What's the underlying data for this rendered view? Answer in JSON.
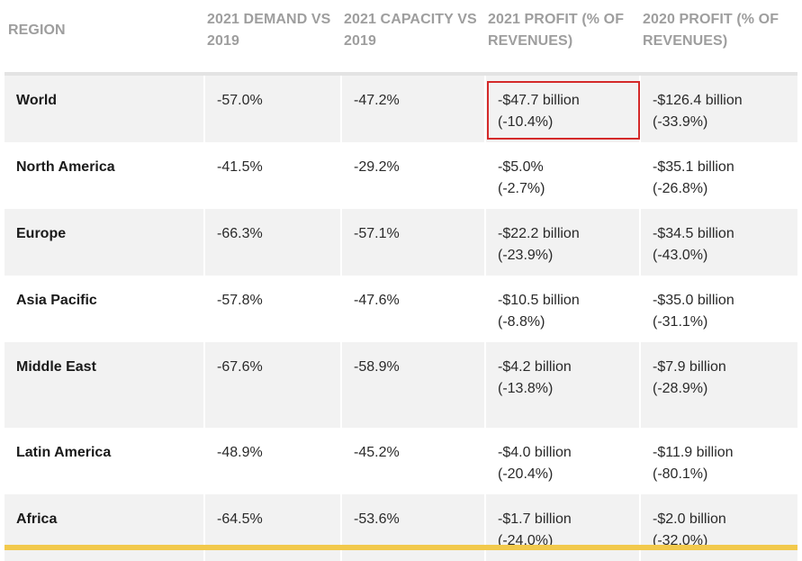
{
  "headers": {
    "region": "REGION",
    "demand": "2021 DEMAND VS 2019",
    "capacity": "2021 CAPACITY VS 2019",
    "profit2021": "2021 PROFIT (% OF REVENUES)",
    "profit2020": "2020 PROFIT (% OF REVENUES)"
  },
  "rows": [
    {
      "region": "World",
      "demand": "-57.0%",
      "capacity": "-47.2%",
      "profit2021_a": "-$47.7 billion",
      "profit2021_b": "(-10.4%)",
      "profit2020_a": "-$126.4 billion",
      "profit2020_b": "(-33.9%)"
    },
    {
      "region": "North America",
      "demand": "-41.5%",
      "capacity": "-29.2%",
      "profit2021_a": "-$5.0%",
      "profit2021_b": "(-2.7%)",
      "profit2020_a": "-$35.1 billion",
      "profit2020_b": "(-26.8%)"
    },
    {
      "region": "Europe",
      "demand": "-66.3%",
      "capacity": "-57.1%",
      "profit2021_a": "-$22.2 billion",
      "profit2021_b": "(-23.9%)",
      "profit2020_a": "-$34.5 billion",
      "profit2020_b": "(-43.0%)"
    },
    {
      "region": "Asia Pacific",
      "demand": "-57.8%",
      "capacity": "-47.6%",
      "profit2021_a": "-$10.5 billion",
      "profit2021_b": "(-8.8%)",
      "profit2020_a": "-$35.0 billion",
      "profit2020_b": "(-31.1%)"
    },
    {
      "region": "Middle East",
      "demand": "-67.6%",
      "capacity": "-58.9%",
      "profit2021_a": "-$4.2 billion",
      "profit2021_b": "(-13.8%)",
      "profit2020_a": "-$7.9 billion",
      "profit2020_b": "(-28.9%)"
    },
    {
      "region": "Latin America",
      "demand": "-48.9%",
      "capacity": "-45.2%",
      "profit2021_a": "-$4.0 billion",
      "profit2021_b": "(-20.4%)",
      "profit2020_a": "-$11.9 billion",
      "profit2020_b": "(-80.1%)"
    },
    {
      "region": "Africa",
      "demand": "-64.5%",
      "capacity": "-53.6%",
      "profit2021_a": "-$1.7 billion",
      "profit2021_b": "(-24.0%)",
      "profit2020_a": "-$2.0 billion",
      "profit2020_b": "(-32.0%)"
    }
  ],
  "colors": {
    "highlight_border": "#d42a2a",
    "footer_bar": "#f2c94c",
    "row_shade": "#f2f2f2",
    "header_text": "#9e9e9e"
  }
}
